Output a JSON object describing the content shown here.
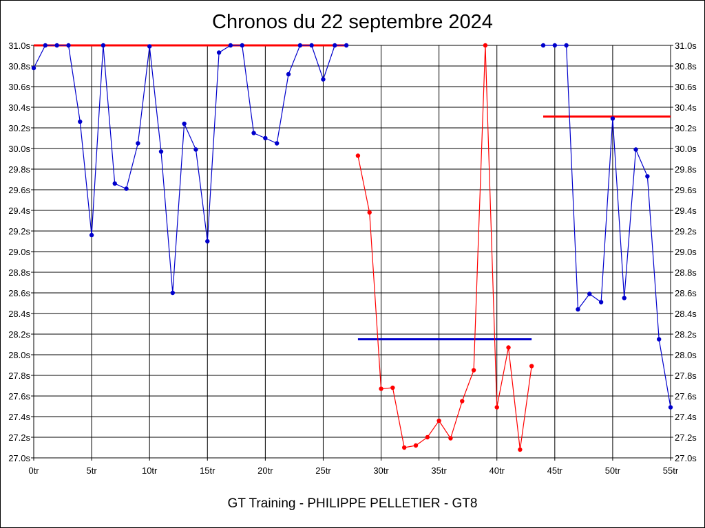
{
  "chart_data": {
    "type": "line",
    "title": "Chronos du 22 septembre 2024",
    "footer": "GT Training - PHILIPPE PELLETIER - GT8",
    "xlim": [
      0,
      55
    ],
    "ylim": [
      27.0,
      31.0
    ],
    "x_ticks": [
      0,
      5,
      10,
      15,
      20,
      25,
      30,
      35,
      40,
      45,
      50,
      55
    ],
    "x_tick_labels": [
      "0tr",
      "5tr",
      "10tr",
      "15tr",
      "20tr",
      "25tr",
      "30tr",
      "35tr",
      "40tr",
      "45tr",
      "50tr",
      "55tr"
    ],
    "y_ticks": [
      27.0,
      27.2,
      27.4,
      27.6,
      27.8,
      28.0,
      28.2,
      28.4,
      28.6,
      28.8,
      29.0,
      29.2,
      29.4,
      29.6,
      29.8,
      30.0,
      30.2,
      30.4,
      30.6,
      30.8,
      31.0
    ],
    "y_tick_labels": [
      "27.0s",
      "27.2s",
      "27.4s",
      "27.6s",
      "27.8s",
      "28.0s",
      "28.2s",
      "28.4s",
      "28.6s",
      "28.8s",
      "29.0s",
      "29.2s",
      "29.4s",
      "29.6s",
      "29.8s",
      "30.0s",
      "30.2s",
      "30.4s",
      "30.6s",
      "30.8s",
      "31.0s"
    ],
    "grid": true,
    "series": [
      {
        "color": "#0000cc",
        "x": [
          0,
          1,
          2,
          3,
          4,
          5,
          6,
          7,
          8,
          9,
          10,
          11,
          12,
          13,
          14,
          15,
          16,
          17,
          18,
          19,
          20,
          21,
          22,
          23,
          24,
          25,
          26,
          27
        ],
        "y": [
          30.78,
          31.0,
          31.0,
          31.0,
          30.26,
          29.16,
          31.0,
          29.66,
          29.61,
          30.05,
          30.99,
          29.97,
          28.6,
          30.24,
          29.99,
          29.1,
          30.93,
          31.0,
          31.0,
          30.15,
          30.1,
          30.05,
          30.72,
          31.0,
          31.0,
          30.67,
          31.0,
          31.0
        ]
      },
      {
        "color": "#ff0000",
        "x": [
          28,
          29,
          30,
          31,
          32,
          33,
          34,
          35,
          36,
          37,
          38,
          39,
          40,
          41,
          42,
          43
        ],
        "y": [
          29.93,
          29.38,
          27.67,
          27.68,
          27.1,
          27.12,
          27.2,
          27.36,
          27.19,
          27.55,
          27.85,
          31.0,
          27.49,
          28.07,
          27.08,
          27.89
        ]
      },
      {
        "color": "#0000cc",
        "x": [
          44,
          45,
          46,
          47,
          48,
          49,
          50,
          51,
          52,
          53,
          54,
          55
        ],
        "y": [
          31.0,
          31.0,
          31.0,
          28.44,
          28.59,
          28.51,
          30.29,
          28.55,
          29.99,
          29.73,
          28.15,
          27.49
        ]
      }
    ],
    "reference_lines": [
      {
        "color": "#ff0000",
        "x": [
          0,
          27
        ],
        "y": 31.0
      },
      {
        "color": "#0000cc",
        "x": [
          28,
          43
        ],
        "y": 28.15
      },
      {
        "color": "#ff0000",
        "x": [
          44,
          55
        ],
        "y": 30.31
      }
    ]
  }
}
